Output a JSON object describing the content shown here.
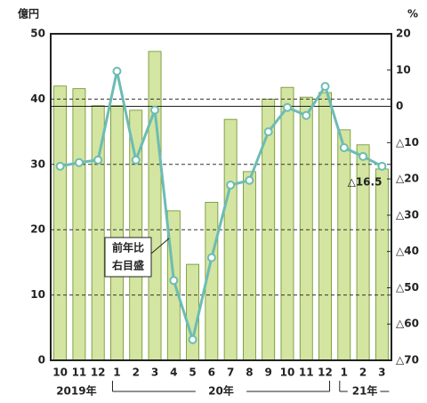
{
  "chart_data": {
    "type": "bar_line",
    "ylabel": "億円",
    "y2label": "%",
    "categories": [
      "10",
      "11",
      "12",
      "1",
      "2",
      "3",
      "4",
      "5",
      "6",
      "7",
      "8",
      "9",
      "10",
      "11",
      "12",
      "1",
      "2",
      "3"
    ],
    "year_labels": [
      "2019年",
      "20年",
      "21年"
    ],
    "series": [
      {
        "type": "bar",
        "color": "#d3e5a0",
        "edge": "#6b8f2a",
        "values": [
          42,
          41.6,
          39,
          39,
          38.3,
          47.3,
          22.9,
          14.7,
          24.2,
          36.9,
          28.9,
          40,
          41.8,
          40.3,
          41,
          35.3,
          33,
          29.3
        ]
      },
      {
        "type": "line",
        "axis": "y2",
        "color": "#6cbcb4",
        "values": [
          -16.5,
          -15.5,
          -14.8,
          9.7,
          -14.8,
          -1,
          -48,
          -64.3,
          -41.7,
          -21.7,
          -20.4,
          -7,
          -0.3,
          -2.5,
          5.5,
          -11.4,
          -13.8,
          -16.5
        ]
      }
    ],
    "ylim": [
      0,
      50
    ],
    "yticks": [
      0,
      10,
      20,
      30,
      40,
      50
    ],
    "y2lim": [
      -70,
      20
    ],
    "y2ticks": [
      {
        "value": -70,
        "label": "△70"
      },
      {
        "value": -60,
        "label": "△60"
      },
      {
        "value": -50,
        "label": "△50"
      },
      {
        "value": -40,
        "label": "△40"
      },
      {
        "value": -30,
        "label": "△30"
      },
      {
        "value": -20,
        "label": "△20"
      },
      {
        "value": -10,
        "label": "△10"
      },
      0,
      10,
      20
    ],
    "grid": true,
    "zero_line_y2": true,
    "line_label": [
      "前年比",
      "右目盛"
    ],
    "last_label": "△16.5"
  }
}
